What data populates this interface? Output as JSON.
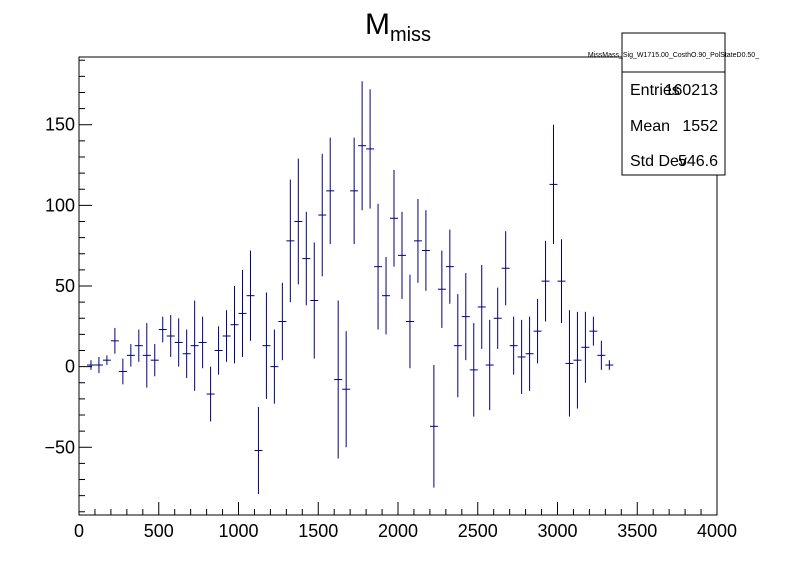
{
  "chart_data": {
    "type": "scatter",
    "title": "M",
    "title_subscript": "miss",
    "xlabel": "",
    "ylabel": "",
    "xlim": [
      0,
      4000
    ],
    "ylim": [
      -92,
      192
    ],
    "x_ticks": [
      0,
      500,
      1000,
      1500,
      2000,
      2500,
      3000,
      3500,
      4000
    ],
    "y_ticks": [
      -50,
      0,
      50,
      100,
      150
    ],
    "grid": false,
    "bin_width": 50,
    "marker_color": "#000080",
    "stats_box": {
      "name": "MissMass_Sig_W1715.00_CosthO.90_PolStateD0.50_",
      "rows": [
        {
          "label": "Entries",
          "value": "160213"
        },
        {
          "label": "Mean",
          "value": "1552"
        },
        {
          "label": "Std Dev",
          "value": "546.6"
        }
      ],
      "placement": "top-right"
    },
    "series": [
      {
        "points": [
          {
            "x": 75,
            "y": 1,
            "err": 3
          },
          {
            "x": 125,
            "y": 1,
            "err": 5
          },
          {
            "x": 175,
            "y": 4,
            "err": 3
          },
          {
            "x": 225,
            "y": 16,
            "err": 8
          },
          {
            "x": 275,
            "y": -3,
            "err": 8
          },
          {
            "x": 325,
            "y": 7,
            "err": 7
          },
          {
            "x": 375,
            "y": 13,
            "err": 10
          },
          {
            "x": 425,
            "y": 7,
            "err": 20
          },
          {
            "x": 475,
            "y": 4,
            "err": 10
          },
          {
            "x": 525,
            "y": 23,
            "err": 8
          },
          {
            "x": 575,
            "y": 19,
            "err": 13
          },
          {
            "x": 625,
            "y": 15,
            "err": 15
          },
          {
            "x": 675,
            "y": 8,
            "err": 15
          },
          {
            "x": 725,
            "y": 13,
            "err": 28
          },
          {
            "x": 775,
            "y": 15,
            "err": 16
          },
          {
            "x": 825,
            "y": -17,
            "err": 17
          },
          {
            "x": 875,
            "y": 10,
            "err": 15
          },
          {
            "x": 925,
            "y": 19,
            "err": 16
          },
          {
            "x": 975,
            "y": 26,
            "err": 24
          },
          {
            "x": 1025,
            "y": 33,
            "err": 27
          },
          {
            "x": 1075,
            "y": 44,
            "err": 28
          },
          {
            "x": 1125,
            "y": -52,
            "err": 27
          },
          {
            "x": 1175,
            "y": 13,
            "err": 33
          },
          {
            "x": 1225,
            "y": 0,
            "err": 23
          },
          {
            "x": 1275,
            "y": 28,
            "err": 24
          },
          {
            "x": 1325,
            "y": 78,
            "err": 38
          },
          {
            "x": 1375,
            "y": 90,
            "err": 39
          },
          {
            "x": 1425,
            "y": 67,
            "err": 29
          },
          {
            "x": 1475,
            "y": 41,
            "err": 36
          },
          {
            "x": 1525,
            "y": 94,
            "err": 38
          },
          {
            "x": 1575,
            "y": 109,
            "err": 33
          },
          {
            "x": 1625,
            "y": -8,
            "err": 49
          },
          {
            "x": 1675,
            "y": -14,
            "err": 36
          },
          {
            "x": 1725,
            "y": 109,
            "err": 33
          },
          {
            "x": 1775,
            "y": 137,
            "err": 40
          },
          {
            "x": 1825,
            "y": 135,
            "err": 37
          },
          {
            "x": 1875,
            "y": 62,
            "err": 39
          },
          {
            "x": 1925,
            "y": 44,
            "err": 24
          },
          {
            "x": 1975,
            "y": 92,
            "err": 30
          },
          {
            "x": 2025,
            "y": 69,
            "err": 27
          },
          {
            "x": 2075,
            "y": 28,
            "err": 29
          },
          {
            "x": 2125,
            "y": 78,
            "err": 26
          },
          {
            "x": 2175,
            "y": 72,
            "err": 25
          },
          {
            "x": 2225,
            "y": -37,
            "err": 38
          },
          {
            "x": 2275,
            "y": 48,
            "err": 24
          },
          {
            "x": 2325,
            "y": 62,
            "err": 23
          },
          {
            "x": 2375,
            "y": 13,
            "err": 32
          },
          {
            "x": 2425,
            "y": 31,
            "err": 27
          },
          {
            "x": 2475,
            "y": -2,
            "err": 29
          },
          {
            "x": 2525,
            "y": 37,
            "err": 26
          },
          {
            "x": 2575,
            "y": 1,
            "err": 28
          },
          {
            "x": 2625,
            "y": 30,
            "err": 19
          },
          {
            "x": 2675,
            "y": 61,
            "err": 23
          },
          {
            "x": 2725,
            "y": 13,
            "err": 18
          },
          {
            "x": 2775,
            "y": 6,
            "err": 23
          },
          {
            "x": 2825,
            "y": 8,
            "err": 23
          },
          {
            "x": 2875,
            "y": 22,
            "err": 20
          },
          {
            "x": 2925,
            "y": 53,
            "err": 25
          },
          {
            "x": 2975,
            "y": 113,
            "err": 37
          },
          {
            "x": 3025,
            "y": 53,
            "err": 26
          },
          {
            "x": 3075,
            "y": 2,
            "err": 33
          },
          {
            "x": 3125,
            "y": 4,
            "err": 30
          },
          {
            "x": 3175,
            "y": 12,
            "err": 22
          },
          {
            "x": 3225,
            "y": 22,
            "err": 9
          },
          {
            "x": 3275,
            "y": 7,
            "err": 9
          },
          {
            "x": 3325,
            "y": 1,
            "err": 3
          }
        ]
      }
    ]
  }
}
